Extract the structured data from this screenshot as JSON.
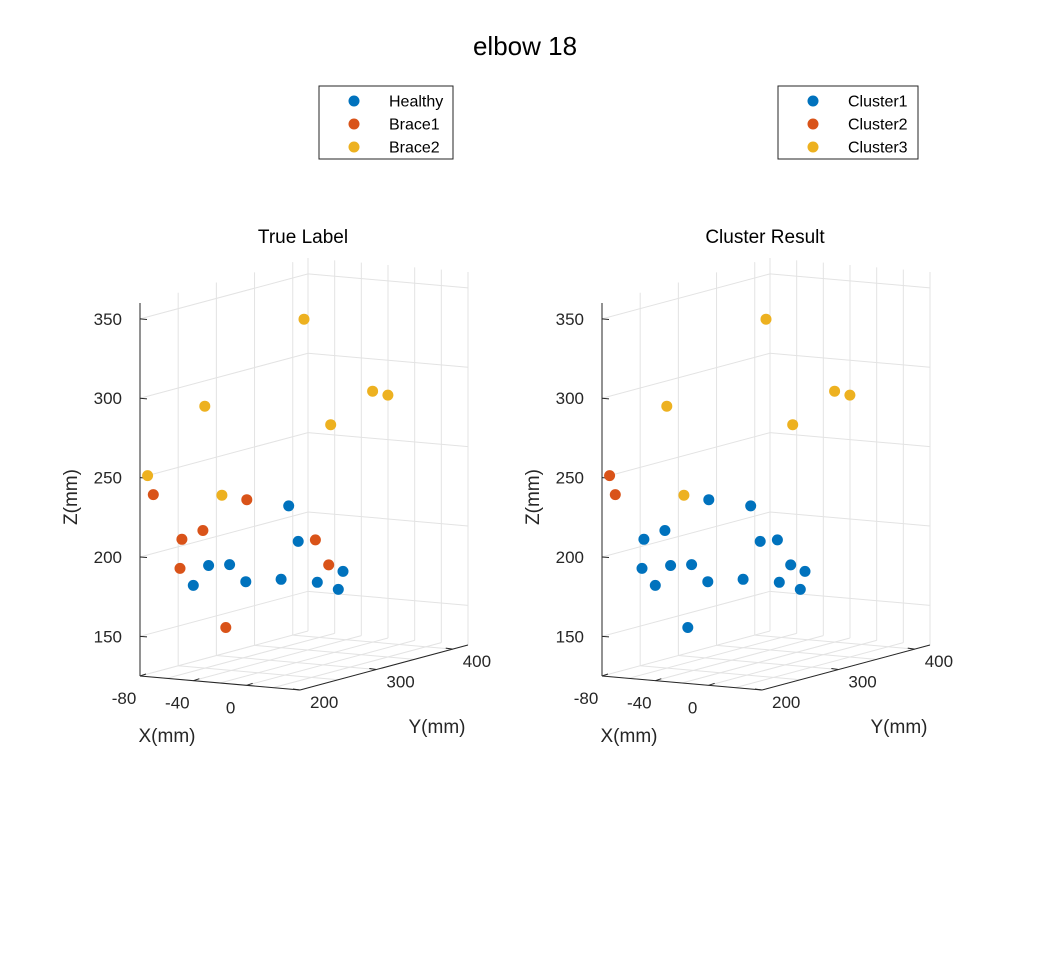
{
  "figure_title": "elbow 18",
  "chart_data": [
    {
      "type": "scatter3d",
      "title": "True Label",
      "xlabel": "X(mm)",
      "ylabel": "Y(mm)",
      "zlabel": "Z(mm)",
      "xticks": [
        "-80",
        "-40",
        "0"
      ],
      "yticks": [
        "200",
        "300",
        "400"
      ],
      "zticks": [
        "150",
        "200",
        "250",
        "300",
        "350"
      ],
      "legend": [
        "Healthy",
        "Brace1",
        "Brace2"
      ],
      "legend_position": "top",
      "grid": true,
      "series": [
        {
          "name": "Healthy",
          "color": "#0072BD",
          "points": [
            [
              -20,
              290,
              225
            ],
            [
              10,
              250,
              210
            ],
            [
              -30,
              230,
              195
            ],
            [
              -40,
              220,
              195
            ],
            [
              -40,
              200,
              185
            ],
            [
              -35,
              260,
              180
            ],
            [
              -20,
              280,
              180
            ],
            [
              -10,
              310,
              175
            ],
            [
              15,
              300,
              185
            ],
            [
              0,
              320,
              170
            ]
          ]
        },
        {
          "name": "Brace1",
          "color": "#D95319",
          "points": [
            [
              -70,
              200,
              240
            ],
            [
              -40,
              270,
              230
            ],
            [
              -60,
              220,
              210
            ],
            [
              -50,
              230,
              215
            ],
            [
              -50,
              200,
              195
            ],
            [
              0,
              290,
              205
            ],
            [
              10,
              290,
              190
            ],
            [
              -50,
              260,
              150
            ]
          ]
        },
        {
          "name": "Brace2",
          "color": "#EDB120",
          "points": [
            [
              -80,
              210,
              250
            ],
            [
              -60,
              250,
              290
            ],
            [
              -30,
              220,
              240
            ],
            [
              -20,
              310,
              340
            ],
            [
              0,
              310,
              275
            ],
            [
              20,
              330,
              295
            ],
            [
              20,
              350,
              290
            ]
          ]
        }
      ]
    },
    {
      "type": "scatter3d",
      "title": "Cluster Result",
      "xlabel": "X(mm)",
      "ylabel": "Y(mm)",
      "zlabel": "Z(mm)",
      "xticks": [
        "-80",
        "-40",
        "0"
      ],
      "yticks": [
        "200",
        "300",
        "400"
      ],
      "zticks": [
        "150",
        "200",
        "250",
        "300",
        "350"
      ],
      "legend": [
        "Cluster1",
        "Cluster2",
        "Cluster3"
      ],
      "legend_position": "top-right",
      "grid": true,
      "series": [
        {
          "name": "Cluster1",
          "color": "#0072BD",
          "points": [
            [
              -20,
              290,
              225
            ],
            [
              10,
              250,
              210
            ],
            [
              -30,
              230,
              195
            ],
            [
              -40,
              220,
              195
            ],
            [
              -40,
              200,
              185
            ],
            [
              -35,
              260,
              180
            ],
            [
              -20,
              280,
              180
            ],
            [
              -10,
              310,
              175
            ],
            [
              15,
              300,
              185
            ],
            [
              0,
              320,
              170
            ],
            [
              -40,
              270,
              230
            ],
            [
              -60,
              220,
              210
            ],
            [
              -50,
              230,
              215
            ],
            [
              -50,
              200,
              195
            ],
            [
              0,
              290,
              205
            ],
            [
              10,
              290,
              190
            ],
            [
              -50,
              260,
              150
            ]
          ]
        },
        {
          "name": "Cluster2",
          "color": "#D95319",
          "points": [
            [
              -80,
              210,
              250
            ],
            [
              -70,
              200,
              240
            ]
          ]
        },
        {
          "name": "Cluster3",
          "color": "#EDB120",
          "points": [
            [
              -60,
              250,
              290
            ],
            [
              -30,
              220,
              240
            ],
            [
              -20,
              310,
              340
            ],
            [
              0,
              310,
              275
            ],
            [
              20,
              330,
              295
            ],
            [
              20,
              350,
              290
            ]
          ]
        }
      ]
    }
  ]
}
